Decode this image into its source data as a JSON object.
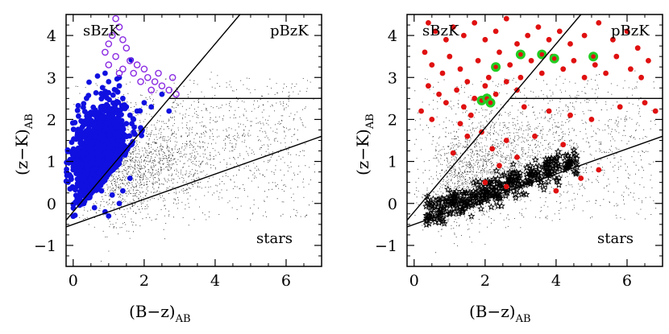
{
  "chart_data": [
    {
      "type": "scatter",
      "panel": "left",
      "xlabel": "(B−z)",
      "xlabel_sub": "AB",
      "ylabel": "(z−K)",
      "ylabel_sub": "AB",
      "xlim": [
        -0.2,
        7.0
      ],
      "ylim": [
        -1.5,
        4.5
      ],
      "xticks": [
        0,
        2,
        4,
        6
      ],
      "yticks": [
        -1,
        0,
        1,
        2,
        3,
        4
      ],
      "region_labels": [
        "sBzK",
        "pBzK",
        "stars"
      ],
      "boundaries": [
        {
          "name": "sBzK selection line",
          "slope": 1.0,
          "intercept": -0.2,
          "x_range": [
            -0.2,
            4.7
          ]
        },
        {
          "name": "pBzK line",
          "x_range": [
            2.7,
            7.0
          ],
          "y": 2.5
        },
        {
          "name": "stellar sequence line",
          "slope": 0.3,
          "intercept": -0.5,
          "x_range": [
            -0.2,
            7.0
          ]
        }
      ],
      "series": [
        {
          "name": "field galaxies",
          "marker": "dot",
          "color": "#000000"
        },
        {
          "name": "sBzK galaxies",
          "marker": "filled-circle",
          "color": "#1010e0",
          "points": [
            [
              0.3,
              0.0
            ],
            [
              0.4,
              0.2
            ],
            [
              0.5,
              0.4
            ],
            [
              0.6,
              0.6
            ],
            [
              0.7,
              0.8
            ],
            [
              0.8,
              1.0
            ],
            [
              0.9,
              1.2
            ],
            [
              0.7,
              1.4
            ],
            [
              0.6,
              1.6
            ],
            [
              0.8,
              1.8
            ],
            [
              1.0,
              2.0
            ],
            [
              1.1,
              2.2
            ],
            [
              1.2,
              2.4
            ],
            [
              0.9,
              2.6
            ],
            [
              1.3,
              2.8
            ],
            [
              1.4,
              2.5
            ],
            [
              1.5,
              2.3
            ],
            [
              1.6,
              2.1
            ],
            [
              1.7,
              2.0
            ],
            [
              1.8,
              2.2
            ],
            [
              2.0,
              2.4
            ],
            [
              2.2,
              2.3
            ],
            [
              2.5,
              2.6
            ],
            [
              2.7,
              2.2
            ],
            [
              1.3,
              1.4
            ],
            [
              1.5,
              1.6
            ],
            [
              1.7,
              1.7
            ],
            [
              1.9,
              1.8
            ],
            [
              0.5,
              1.0
            ],
            [
              0.4,
              1.4
            ],
            [
              0.3,
              0.8
            ],
            [
              0.2,
              0.6
            ],
            [
              1.1,
              0.2
            ],
            [
              1.3,
              0.0
            ],
            [
              0.9,
              -0.2
            ],
            [
              1.0,
              -0.3
            ],
            [
              1.4,
              0.3
            ],
            [
              1.6,
              0.6
            ],
            [
              1.2,
              1.0
            ],
            [
              0.6,
              -0.1
            ],
            [
              0.8,
              0.3
            ],
            [
              1.5,
              1.9
            ],
            [
              1.2,
              2.7
            ],
            [
              1.3,
              3.0
            ],
            [
              0.9,
              3.1
            ],
            [
              1.0,
              2.9
            ]
          ]
        },
        {
          "name": "sBzK high-z candidates",
          "marker": "open-circle",
          "color": "#8a2be2",
          "points": [
            [
              1.2,
              4.4
            ],
            [
              1.3,
              4.2
            ],
            [
              1.1,
              4.0
            ],
            [
              1.0,
              3.8
            ],
            [
              1.4,
              3.9
            ],
            [
              1.5,
              3.7
            ],
            [
              0.9,
              3.6
            ],
            [
              1.2,
              3.5
            ],
            [
              1.6,
              3.4
            ],
            [
              1.8,
              3.3
            ],
            [
              2.0,
              3.2
            ],
            [
              1.7,
              3.1
            ],
            [
              2.1,
              3.0
            ],
            [
              2.3,
              2.9
            ],
            [
              2.5,
              2.8
            ],
            [
              2.7,
              2.7
            ],
            [
              2.9,
              2.6
            ],
            [
              1.4,
              3.2
            ],
            [
              1.0,
              3.3
            ],
            [
              1.3,
              3.1
            ],
            [
              2.4,
              3.1
            ],
            [
              2.8,
              3.0
            ],
            [
              2.2,
              2.7
            ],
            [
              1.9,
              2.9
            ]
          ]
        }
      ]
    },
    {
      "type": "scatter",
      "panel": "right",
      "xlabel": "(B−z)",
      "xlabel_sub": "AB",
      "ylabel": "(z−K)",
      "ylabel_sub": "AB",
      "xlim": [
        -0.2,
        7.0
      ],
      "ylim": [
        -1.5,
        4.5
      ],
      "xticks": [
        0,
        2,
        4,
        6
      ],
      "yticks": [
        -1,
        0,
        1,
        2,
        3,
        4
      ],
      "region_labels": [
        "sBzK",
        "pBzK",
        "stars"
      ],
      "boundaries": [
        {
          "name": "sBzK selection line",
          "slope": 1.0,
          "intercept": -0.2,
          "x_range": [
            -0.2,
            4.7
          ]
        },
        {
          "name": "pBzK line",
          "x_range": [
            2.7,
            7.0
          ],
          "y": 2.5
        },
        {
          "name": "stellar sequence line",
          "slope": 0.3,
          "intercept": -0.5,
          "x_range": [
            -0.2,
            7.0
          ]
        }
      ],
      "series": [
        {
          "name": "field galaxies",
          "marker": "dot",
          "color": "#000000"
        },
        {
          "name": "stars",
          "marker": "star",
          "color": "#000000"
        },
        {
          "name": "red objects",
          "marker": "filled-circle",
          "color": "#e01010",
          "points": [
            [
              0.4,
              4.3
            ],
            [
              0.6,
              4.1
            ],
            [
              0.9,
              3.9
            ],
            [
              1.1,
              4.2
            ],
            [
              1.4,
              4.0
            ],
            [
              1.7,
              4.3
            ],
            [
              2.0,
              3.9
            ],
            [
              2.3,
              4.1
            ],
            [
              2.6,
              4.4
            ],
            [
              2.9,
              3.8
            ],
            [
              3.2,
              4.0
            ],
            [
              3.5,
              4.2
            ],
            [
              3.8,
              3.9
            ],
            [
              4.1,
              4.1
            ],
            [
              4.4,
              3.8
            ],
            [
              4.8,
              4.0
            ],
            [
              5.2,
              4.3
            ],
            [
              5.6,
              3.9
            ],
            [
              6.0,
              4.1
            ],
            [
              6.3,
              3.7
            ],
            [
              6.6,
              3.4
            ],
            [
              0.3,
              3.6
            ],
            [
              0.5,
              3.3
            ],
            [
              0.8,
              3.1
            ],
            [
              1.0,
              3.5
            ],
            [
              1.3,
              3.2
            ],
            [
              1.5,
              2.9
            ],
            [
              1.8,
              3.4
            ],
            [
              2.1,
              3.0
            ],
            [
              2.4,
              3.6
            ],
            [
              2.7,
              3.3
            ],
            [
              3.0,
              3.0
            ],
            [
              3.3,
              3.4
            ],
            [
              3.6,
              3.1
            ],
            [
              3.9,
              3.5
            ],
            [
              4.2,
              3.2
            ],
            [
              4.5,
              3.4
            ],
            [
              4.8,
              3.0
            ],
            [
              5.1,
              3.3
            ],
            [
              5.4,
              3.1
            ],
            [
              5.7,
              3.5
            ],
            [
              6.1,
              3.2
            ],
            [
              6.4,
              3.0
            ],
            [
              0.4,
              2.8
            ],
            [
              0.7,
              2.6
            ],
            [
              0.9,
              2.4
            ],
            [
              1.2,
              2.7
            ],
            [
              1.4,
              2.3
            ],
            [
              1.7,
              2.5
            ],
            [
              2.0,
              2.8
            ],
            [
              2.3,
              2.6
            ],
            [
              2.6,
              2.9
            ],
            [
              2.9,
              2.7
            ],
            [
              0.2,
              2.2
            ],
            [
              0.5,
              2.0
            ],
            [
              1.6,
              2.1
            ],
            [
              3.1,
              2.3
            ],
            [
              3.8,
              2.2
            ],
            [
              4.4,
              2.1
            ],
            [
              5.0,
              2.0
            ],
            [
              5.8,
              2.3
            ],
            [
              6.5,
              2.4
            ],
            [
              6.8,
              2.2
            ],
            [
              1.3,
              1.9
            ],
            [
              1.5,
              1.6
            ],
            [
              1.9,
              1.7
            ],
            [
              2.2,
              1.3
            ],
            [
              2.6,
              1.5
            ],
            [
              1.1,
              1.2
            ],
            [
              2.4,
              0.9
            ],
            [
              2.9,
              1.1
            ],
            [
              3.4,
              1.6
            ],
            [
              4.2,
              1.4
            ],
            [
              4.7,
              0.6
            ],
            [
              5.2,
              0.8
            ],
            [
              2.0,
              0.5
            ],
            [
              2.6,
              0.4
            ],
            [
              4.0,
              0.3
            ]
          ]
        },
        {
          "name": "green highlighted objects",
          "marker": "filled-circle-large",
          "color": "#22cc22",
          "points": [
            [
              2.3,
              3.25
            ],
            [
              3.0,
              3.55
            ],
            [
              3.6,
              3.55
            ],
            [
              3.95,
              3.45
            ],
            [
              5.05,
              3.5
            ],
            [
              1.9,
              2.45
            ],
            [
              2.05,
              2.5
            ],
            [
              2.15,
              2.4
            ]
          ]
        }
      ]
    }
  ]
}
